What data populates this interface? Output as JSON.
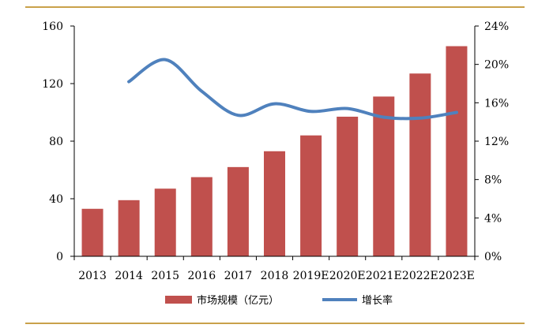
{
  "chart_data": {
    "type": "bar",
    "categories": [
      "2013",
      "2014",
      "2015",
      "2016",
      "2017",
      "2018",
      "2019E",
      "2020E",
      "2021E",
      "2022E",
      "2023E"
    ],
    "series": [
      {
        "name": "市场规模（亿元）",
        "type": "bar",
        "axis": "left",
        "color": "#c0504d",
        "values": [
          33,
          39,
          47,
          55,
          62,
          73,
          84,
          97,
          111,
          127,
          146
        ]
      },
      {
        "name": "增长率",
        "type": "line",
        "axis": "right",
        "color": "#4f81bd",
        "values": [
          null,
          18.2,
          20.5,
          17.2,
          14.7,
          15.9,
          15.1,
          15.4,
          14.5,
          14.4,
          15.0
        ]
      }
    ],
    "y_left": {
      "min": 0,
      "max": 160,
      "ticks": [
        0,
        40,
        80,
        120,
        160
      ]
    },
    "y_right": {
      "min": 0,
      "max": 24,
      "ticks": [
        "0%",
        "4%",
        "8%",
        "12%",
        "16%",
        "20%",
        "24%"
      ]
    },
    "legend_position": "bottom",
    "grid": false
  }
}
